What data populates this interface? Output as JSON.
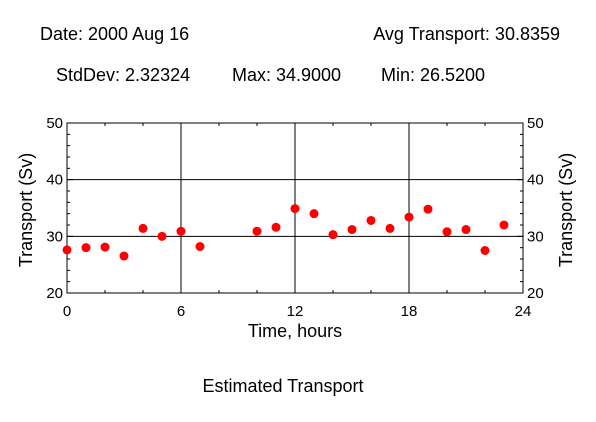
{
  "header": {
    "date": "Date: 2000 Aug 16",
    "avg": "Avg Transport: 30.8359",
    "stddev": "StdDev: 2.32324",
    "max": "Max: 34.9000",
    "min": "Min: 26.5200"
  },
  "footer": {
    "caption": "Estimated Transport"
  },
  "chart_data": {
    "type": "scatter",
    "title": "Estimated Transport",
    "xlabel": "Time, hours",
    "ylabel": "Transport (Sv)",
    "ylabel_right": "Transport (Sv)",
    "xlim": [
      0,
      24
    ],
    "ylim": [
      20,
      50
    ],
    "xticks": [
      0,
      6,
      12,
      18,
      24
    ],
    "yticks": [
      20,
      30,
      40,
      50
    ],
    "grid": true,
    "marker_color": "#ff0000",
    "series": [
      {
        "x": [
          0,
          1,
          2,
          3,
          4,
          5,
          6,
          7,
          10,
          11,
          12,
          13,
          14,
          15,
          16,
          17,
          18,
          19,
          20,
          21,
          22,
          23
        ],
        "y": [
          27.6,
          28.0,
          28.1,
          26.52,
          31.4,
          30.0,
          30.9,
          28.2,
          30.9,
          31.6,
          34.9,
          34.0,
          30.3,
          31.2,
          32.8,
          31.4,
          33.4,
          34.8,
          30.8,
          31.2,
          27.5,
          32.0
        ]
      }
    ]
  }
}
